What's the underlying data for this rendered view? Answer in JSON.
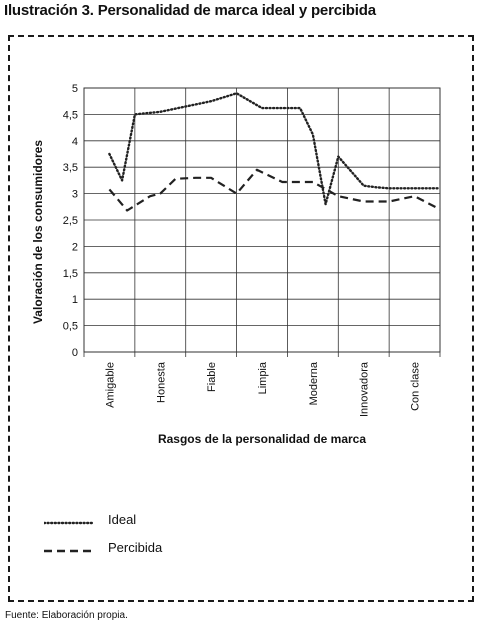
{
  "title": "Ilustración 3. Personalidad de marca ideal y percibida",
  "source": "Fuente: Elaboración propia.",
  "chart_data": {
    "type": "line",
    "ylabel": "Valoración de los consumidores",
    "xlabel": "Rasgos de la personalidad de marca",
    "ylim": [
      0,
      5
    ],
    "yticks": [
      "0",
      "0,5",
      "1",
      "1,5",
      "2",
      "2,5",
      "3",
      "3,5",
      "4",
      "4,5",
      "5"
    ],
    "grid": true,
    "legend_position": "bottom-left",
    "categories": [
      "Amigable",
      "Honesta",
      "Fiable",
      "Limpia",
      "Moderna",
      "Innovadora",
      "Con clase"
    ],
    "series": [
      {
        "name": "Ideal",
        "style": "dotted",
        "x": [
          0,
          0.25,
          0.5,
          1,
          2,
          2.5,
          3,
          3.5,
          3.75,
          4,
          4.25,
          4.5,
          5,
          5.25,
          5.5,
          6,
          6.25,
          6.5
        ],
        "values": [
          3.75,
          3.25,
          4.5,
          4.55,
          4.75,
          4.9,
          4.62,
          4.62,
          4.62,
          4.12,
          2.8,
          3.7,
          3.15,
          3.12,
          3.1,
          3.1,
          3.1,
          3.1
        ]
      },
      {
        "name": "Percibida",
        "style": "dashed",
        "x": [
          0,
          0.35,
          0.8,
          1,
          1.3,
          1.7,
          2,
          2.5,
          2.9,
          3.4,
          3.75,
          4,
          4.5,
          5,
          5.5,
          6,
          6.5
        ],
        "values": [
          3.08,
          2.68,
          2.95,
          3.0,
          3.28,
          3.3,
          3.3,
          3.0,
          3.45,
          3.22,
          3.22,
          3.22,
          2.95,
          2.85,
          2.85,
          2.95,
          2.7
        ]
      }
    ],
    "colors": {
      "line": "#222222",
      "grid": "#333333"
    }
  }
}
